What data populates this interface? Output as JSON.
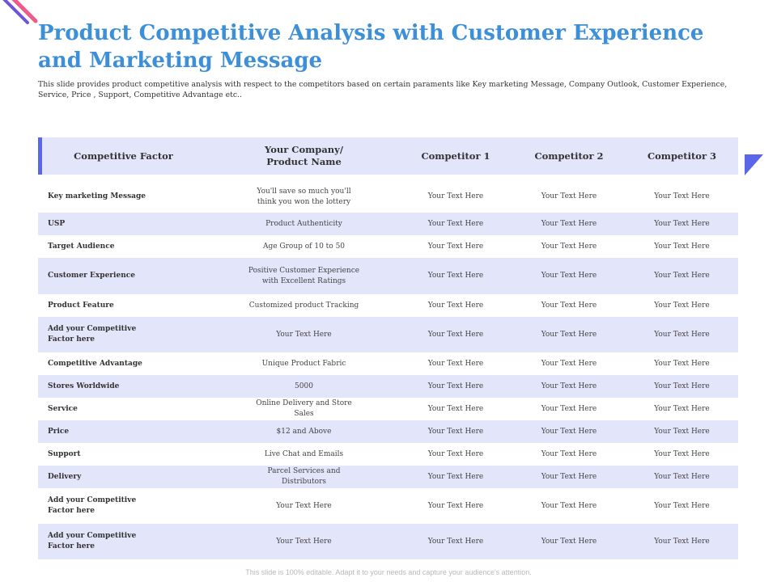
{
  "slide": {
    "title": "Product Competitive Analysis with Customer Experience and Marketing Message",
    "subtitle": "This slide provides product competitive analysis with respect to the competitors based on certain paraments like Key marketing Message, Company Outlook, Customer Experience, Service, Price , Support, Competitive Advantage etc..",
    "footer": "This slide is 100% editable. Adapt it to your needs and capture your audience's attention."
  },
  "colors": {
    "title": "#3d8fd8",
    "row_band": "#e3e5fb",
    "accent": "#5b67e8"
  },
  "table": {
    "headers": [
      "Competitive Factor",
      "Your Company/\nProduct Name",
      "Competitor 1",
      "Competitor 2",
      "Competitor 3"
    ],
    "rows": [
      [
        "Key marketing Message",
        "You'll save so much you'll think you won the lottery",
        "Your Text Here",
        "Your Text Here",
        "Your Text Here"
      ],
      [
        "USP",
        "Product Authenticity",
        "Your Text Here",
        "Your Text Here",
        "Your Text Here"
      ],
      [
        "Target Audience",
        "Age Group of 10 to 50",
        "Your Text Here",
        "Your Text Here",
        "Your Text Here"
      ],
      [
        "Customer Experience",
        "Positive Customer Experience with Excellent Ratings",
        "Your Text Here",
        "Your Text Here",
        "Your Text Here"
      ],
      [
        "Product Feature",
        "Customized product Tracking",
        "Your Text Here",
        "Your Text Here",
        "Your Text Here"
      ],
      [
        "Add your Competitive Factor here",
        "Your Text Here",
        "Your Text Here",
        "Your Text Here",
        "Your Text Here"
      ],
      [
        "Competitive Advantage",
        "Unique Product Fabric",
        "Your Text Here",
        "Your Text Here",
        "Your Text Here"
      ],
      [
        "Stores Worldwide",
        "5000",
        "Your Text Here",
        "Your Text Here",
        "Your Text Here"
      ],
      [
        "Service",
        "Online Delivery and Store Sales",
        "Your Text Here",
        "Your Text Here",
        "Your Text Here"
      ],
      [
        "Price",
        "$12 and Above",
        "Your Text Here",
        "Your Text Here",
        "Your Text Here"
      ],
      [
        "Support",
        "Live Chat and Emails",
        "Your Text Here",
        "Your Text Here",
        "Your Text Here"
      ],
      [
        "Delivery",
        "Parcel Services and Distributors",
        "Your Text Here",
        "Your Text Here",
        "Your Text Here"
      ],
      [
        "Add your Competitive Factor here",
        "Your Text Here",
        "Your Text Here",
        "Your Text Here",
        "Your Text Here"
      ],
      [
        "Add your Competitive Factor here",
        "Your Text Here",
        "Your Text Here",
        "Your Text Here",
        "Your Text Here"
      ]
    ]
  }
}
